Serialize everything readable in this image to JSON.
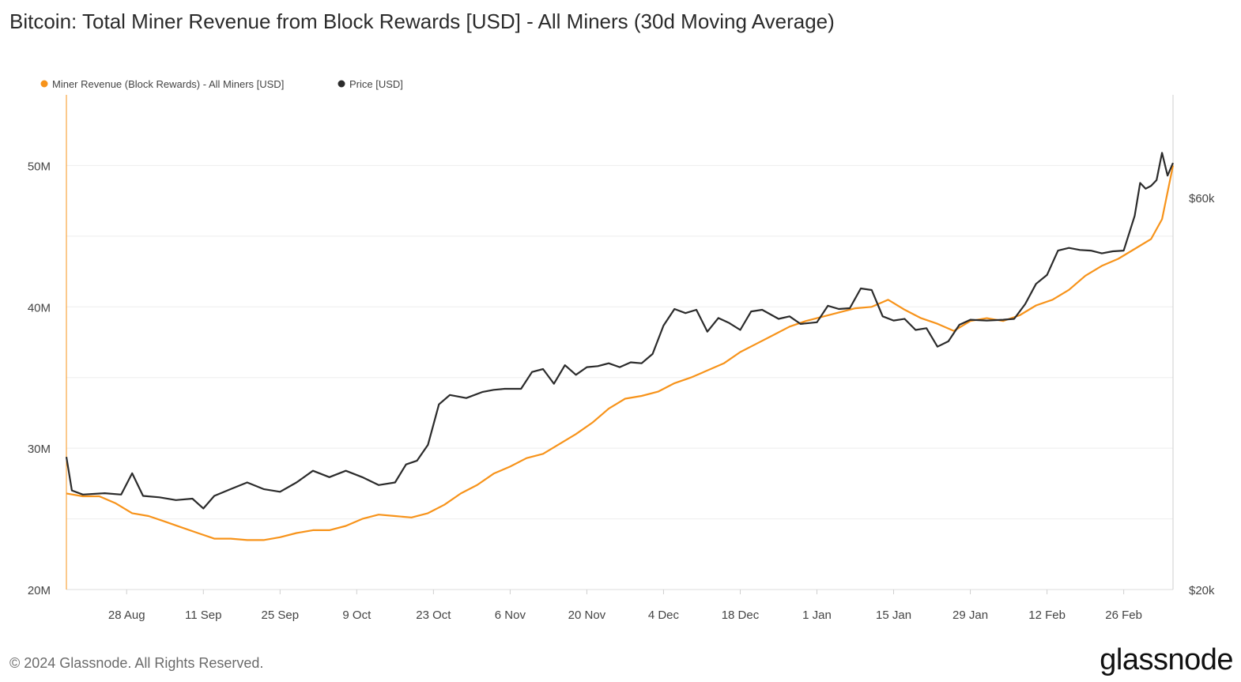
{
  "title": "Bitcoin: Total Miner Revenue from Block Rewards [USD] - All Miners (30d Moving Average)",
  "footer": {
    "copyright": "© 2024 Glassnode. All Rights Reserved.",
    "brand": "glassnode"
  },
  "chart_data": {
    "type": "line",
    "title": "Bitcoin: Total Miner Revenue from Block Rewards [USD] - All Miners (30d Moving Average)",
    "x_start": "2023-08-17",
    "x_end": "2024-03-06",
    "xticks": [
      {
        "date": "2023-08-28",
        "label": "28 Aug"
      },
      {
        "date": "2023-09-11",
        "label": "11 Sep"
      },
      {
        "date": "2023-09-25",
        "label": "25 Sep"
      },
      {
        "date": "2023-10-09",
        "label": "9 Oct"
      },
      {
        "date": "2023-10-23",
        "label": "23 Oct"
      },
      {
        "date": "2023-11-06",
        "label": "6 Nov"
      },
      {
        "date": "2023-11-20",
        "label": "20 Nov"
      },
      {
        "date": "2023-12-04",
        "label": "4 Dec"
      },
      {
        "date": "2023-12-18",
        "label": "18 Dec"
      },
      {
        "date": "2024-01-01",
        "label": "1 Jan"
      },
      {
        "date": "2024-01-15",
        "label": "15 Jan"
      },
      {
        "date": "2024-01-29",
        "label": "29 Jan"
      },
      {
        "date": "2024-02-12",
        "label": "12 Feb"
      },
      {
        "date": "2024-02-26",
        "label": "26 Feb"
      }
    ],
    "y_left": {
      "range": [
        20000000,
        55000000
      ],
      "ticks": [
        {
          "v": 20000000,
          "label": "20M"
        },
        {
          "v": 30000000,
          "label": "30M"
        },
        {
          "v": 40000000,
          "label": "40M"
        },
        {
          "v": 50000000,
          "label": "50M"
        }
      ]
    },
    "y_right": {
      "scale": "log",
      "range": [
        20000,
        80000
      ],
      "ticks": [
        {
          "v": 20000,
          "label": "$20k"
        },
        {
          "v": 60000,
          "label": "$60k"
        }
      ]
    },
    "legend_position": "top-left",
    "colors": {
      "revenue": "#f7931a",
      "price": "#2b2b2b",
      "grid": "#eeeeee",
      "axis": "#dddddd"
    },
    "series": [
      {
        "name": "Miner Revenue (Block Rewards) - All Miners [USD]",
        "axis": "left",
        "color": "#f7931a",
        "points": [
          [
            "2023-08-17",
            26800000
          ],
          [
            "2023-08-20",
            26600000
          ],
          [
            "2023-08-23",
            26600000
          ],
          [
            "2023-08-26",
            26100000
          ],
          [
            "2023-08-29",
            25400000
          ],
          [
            "2023-09-01",
            25200000
          ],
          [
            "2023-09-04",
            24800000
          ],
          [
            "2023-09-07",
            24400000
          ],
          [
            "2023-09-10",
            24000000
          ],
          [
            "2023-09-13",
            23600000
          ],
          [
            "2023-09-16",
            23600000
          ],
          [
            "2023-09-19",
            23500000
          ],
          [
            "2023-09-22",
            23500000
          ],
          [
            "2023-09-25",
            23700000
          ],
          [
            "2023-09-28",
            24000000
          ],
          [
            "2023-10-01",
            24200000
          ],
          [
            "2023-10-04",
            24200000
          ],
          [
            "2023-10-07",
            24500000
          ],
          [
            "2023-10-10",
            25000000
          ],
          [
            "2023-10-13",
            25300000
          ],
          [
            "2023-10-16",
            25200000
          ],
          [
            "2023-10-19",
            25100000
          ],
          [
            "2023-10-22",
            25400000
          ],
          [
            "2023-10-25",
            26000000
          ],
          [
            "2023-10-28",
            26800000
          ],
          [
            "2023-10-31",
            27400000
          ],
          [
            "2023-11-03",
            28200000
          ],
          [
            "2023-11-06",
            28700000
          ],
          [
            "2023-11-09",
            29300000
          ],
          [
            "2023-11-12",
            29600000
          ],
          [
            "2023-11-15",
            30300000
          ],
          [
            "2023-11-18",
            31000000
          ],
          [
            "2023-11-21",
            31800000
          ],
          [
            "2023-11-24",
            32800000
          ],
          [
            "2023-11-27",
            33500000
          ],
          [
            "2023-11-30",
            33700000
          ],
          [
            "2023-12-03",
            34000000
          ],
          [
            "2023-12-06",
            34600000
          ],
          [
            "2023-12-09",
            35000000
          ],
          [
            "2023-12-12",
            35500000
          ],
          [
            "2023-12-15",
            36000000
          ],
          [
            "2023-12-18",
            36800000
          ],
          [
            "2023-12-21",
            37400000
          ],
          [
            "2023-12-24",
            38000000
          ],
          [
            "2023-12-27",
            38600000
          ],
          [
            "2023-12-30",
            39000000
          ],
          [
            "2024-01-02",
            39300000
          ],
          [
            "2024-01-05",
            39600000
          ],
          [
            "2024-01-08",
            39900000
          ],
          [
            "2024-01-11",
            40000000
          ],
          [
            "2024-01-14",
            40500000
          ],
          [
            "2024-01-17",
            39800000
          ],
          [
            "2024-01-20",
            39200000
          ],
          [
            "2024-01-23",
            38800000
          ],
          [
            "2024-01-26",
            38300000
          ],
          [
            "2024-01-29",
            39000000
          ],
          [
            "2024-02-01",
            39200000
          ],
          [
            "2024-02-04",
            39000000
          ],
          [
            "2024-02-07",
            39400000
          ],
          [
            "2024-02-10",
            40100000
          ],
          [
            "2024-02-13",
            40500000
          ],
          [
            "2024-02-16",
            41200000
          ],
          [
            "2024-02-19",
            42200000
          ],
          [
            "2024-02-22",
            42900000
          ],
          [
            "2024-02-25",
            43400000
          ],
          [
            "2024-02-28",
            44100000
          ],
          [
            "2024-03-02",
            44800000
          ],
          [
            "2024-03-04",
            46200000
          ],
          [
            "2024-03-06",
            50000000
          ]
        ]
      },
      {
        "name": "Price [USD]",
        "axis": "right",
        "color": "#2b2b2b",
        "points": [
          [
            "2023-08-17",
            29000
          ],
          [
            "2023-08-18",
            26400
          ],
          [
            "2023-08-20",
            26100
          ],
          [
            "2023-08-24",
            26200
          ],
          [
            "2023-08-27",
            26100
          ],
          [
            "2023-08-29",
            27700
          ],
          [
            "2023-08-31",
            26000
          ],
          [
            "2023-09-03",
            25900
          ],
          [
            "2023-09-06",
            25700
          ],
          [
            "2023-09-09",
            25800
          ],
          [
            "2023-09-11",
            25100
          ],
          [
            "2023-09-13",
            26000
          ],
          [
            "2023-09-16",
            26500
          ],
          [
            "2023-09-19",
            27000
          ],
          [
            "2023-09-22",
            26500
          ],
          [
            "2023-09-25",
            26300
          ],
          [
            "2023-09-28",
            27000
          ],
          [
            "2023-10-01",
            27900
          ],
          [
            "2023-10-04",
            27400
          ],
          [
            "2023-10-07",
            27900
          ],
          [
            "2023-10-10",
            27400
          ],
          [
            "2023-10-13",
            26800
          ],
          [
            "2023-10-16",
            27000
          ],
          [
            "2023-10-18",
            28400
          ],
          [
            "2023-10-20",
            28700
          ],
          [
            "2023-10-22",
            30000
          ],
          [
            "2023-10-24",
            33600
          ],
          [
            "2023-10-26",
            34500
          ],
          [
            "2023-10-29",
            34200
          ],
          [
            "2023-11-01",
            34800
          ],
          [
            "2023-11-03",
            35000
          ],
          [
            "2023-11-05",
            35100
          ],
          [
            "2023-11-08",
            35100
          ],
          [
            "2023-11-10",
            36800
          ],
          [
            "2023-11-12",
            37100
          ],
          [
            "2023-11-14",
            35600
          ],
          [
            "2023-11-16",
            37500
          ],
          [
            "2023-11-18",
            36500
          ],
          [
            "2023-11-20",
            37300
          ],
          [
            "2023-11-22",
            37400
          ],
          [
            "2023-11-24",
            37700
          ],
          [
            "2023-11-26",
            37300
          ],
          [
            "2023-11-28",
            37800
          ],
          [
            "2023-11-30",
            37700
          ],
          [
            "2023-12-02",
            38700
          ],
          [
            "2023-12-04",
            41900
          ],
          [
            "2023-12-06",
            43900
          ],
          [
            "2023-12-08",
            43400
          ],
          [
            "2023-12-10",
            43800
          ],
          [
            "2023-12-12",
            41200
          ],
          [
            "2023-12-14",
            42800
          ],
          [
            "2023-12-16",
            42200
          ],
          [
            "2023-12-18",
            41400
          ],
          [
            "2023-12-20",
            43600
          ],
          [
            "2023-12-22",
            43800
          ],
          [
            "2023-12-25",
            42700
          ],
          [
            "2023-12-27",
            43000
          ],
          [
            "2023-12-29",
            42100
          ],
          [
            "2024-01-01",
            42300
          ],
          [
            "2024-01-03",
            44300
          ],
          [
            "2024-01-05",
            43900
          ],
          [
            "2024-01-07",
            44000
          ],
          [
            "2024-01-09",
            46500
          ],
          [
            "2024-01-11",
            46300
          ],
          [
            "2024-01-13",
            43000
          ],
          [
            "2024-01-15",
            42500
          ],
          [
            "2024-01-17",
            42700
          ],
          [
            "2024-01-19",
            41400
          ],
          [
            "2024-01-21",
            41600
          ],
          [
            "2024-01-23",
            39500
          ],
          [
            "2024-01-25",
            40100
          ],
          [
            "2024-01-27",
            42000
          ],
          [
            "2024-01-29",
            42600
          ],
          [
            "2024-02-01",
            42500
          ],
          [
            "2024-02-04",
            42600
          ],
          [
            "2024-02-06",
            42700
          ],
          [
            "2024-02-08",
            44500
          ],
          [
            "2024-02-10",
            47100
          ],
          [
            "2024-02-12",
            48300
          ],
          [
            "2024-02-14",
            51700
          ],
          [
            "2024-02-16",
            52100
          ],
          [
            "2024-02-18",
            51800
          ],
          [
            "2024-02-20",
            51700
          ],
          [
            "2024-02-22",
            51300
          ],
          [
            "2024-02-24",
            51600
          ],
          [
            "2024-02-26",
            51700
          ],
          [
            "2024-02-28",
            57000
          ],
          [
            "2024-02-29",
            62500
          ],
          [
            "2024-03-01",
            61500
          ],
          [
            "2024-03-02",
            62000
          ],
          [
            "2024-03-03",
            63000
          ],
          [
            "2024-03-04",
            68000
          ],
          [
            "2024-03-05",
            63800
          ],
          [
            "2024-03-06",
            66100
          ]
        ]
      }
    ]
  }
}
